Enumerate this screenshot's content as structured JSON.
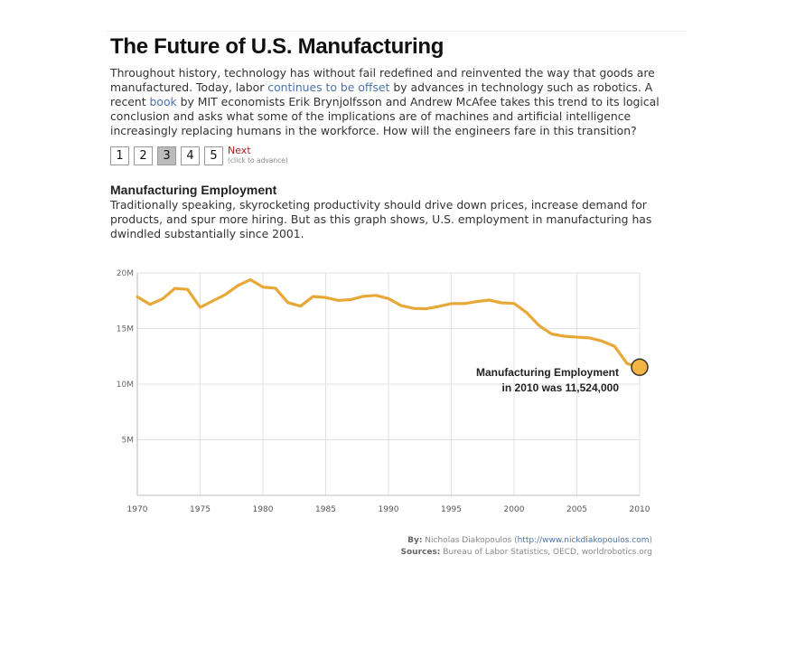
{
  "header": {
    "title": "The Future of U.S. Manufacturing"
  },
  "intro": {
    "part1": "Throughout history, technology has without fail redefined and reinvented the way that goods are manufactured. Today, labor ",
    "link1": "continues to be offset",
    "part2": " by advances in technology such as robotics. A recent ",
    "link2": "book",
    "part3": " by MIT economists Erik Brynjolfsson and Andrew McAfee takes this trend to its logical conclusion and asks what some of the implications are of machines and artificial intelligence increasingly replacing humans in the workforce. How will the engineers fare in this transition?"
  },
  "pager": {
    "pages": [
      "1",
      "2",
      "3",
      "4",
      "5"
    ],
    "active": 2,
    "next_label": "Next",
    "next_hint": "(click to advance)"
  },
  "section": {
    "heading": "Manufacturing Employment",
    "description": "Traditionally speaking, skyrocketing productivity should drive down prices, increase demand for products, and spur more hiring. But as this graph shows, U.S. employment in manufacturing has dwindled substantially since 2001."
  },
  "credits": {
    "by_label": "By:",
    "by_value": "Nicholas Diakopoulos (",
    "by_url": "http://www.nickdiakopoulos.com",
    "by_close": ")",
    "sources_label": "Sources:",
    "sources_value": "Bureau of Labor Statistics, OECD, worldrobotics.org"
  },
  "colors": {
    "line": "#e8a838",
    "marker_fill": "#f2b445",
    "marker_stroke": "#333333",
    "grid": "#e2e2e2",
    "axis": "#bbbbbb"
  },
  "chart_data": {
    "type": "line",
    "x": [
      1970,
      1971,
      1972,
      1973,
      1974,
      1975,
      1976,
      1977,
      1978,
      1979,
      1980,
      1981,
      1982,
      1983,
      1984,
      1985,
      1986,
      1987,
      1988,
      1989,
      1990,
      1991,
      1992,
      1993,
      1994,
      1995,
      1996,
      1997,
      1998,
      1999,
      2000,
      2001,
      2002,
      2003,
      2004,
      2005,
      2006,
      2007,
      2008,
      2009,
      2010
    ],
    "series": [
      {
        "values": [
          17.85,
          17.17,
          17.67,
          18.62,
          18.52,
          16.91,
          17.48,
          18.05,
          18.86,
          19.4,
          18.73,
          18.63,
          17.33,
          17.02,
          17.89,
          17.79,
          17.54,
          17.6,
          17.9,
          17.98,
          17.7,
          17.07,
          16.81,
          16.78,
          16.99,
          17.24,
          17.24,
          17.42,
          17.56,
          17.32,
          17.26,
          16.44,
          15.26,
          14.51,
          14.31,
          14.23,
          14.16,
          13.88,
          13.41,
          11.85,
          11.524
        ]
      }
    ],
    "xticks": [
      1970,
      1975,
      1980,
      1985,
      1990,
      1995,
      2000,
      2005,
      2010
    ],
    "yticks": [
      5,
      10,
      15,
      20
    ],
    "ytick_labels": [
      "5M",
      "10M",
      "15M",
      "20M"
    ],
    "xlim": [
      1970,
      2010
    ],
    "ylim": [
      0,
      20
    ],
    "grid": true,
    "highlight": {
      "x": 2010,
      "y": 11.524
    },
    "annotation_line1": "Manufacturing Employment",
    "annotation_line2": "in 2010 was 11,524,000"
  }
}
